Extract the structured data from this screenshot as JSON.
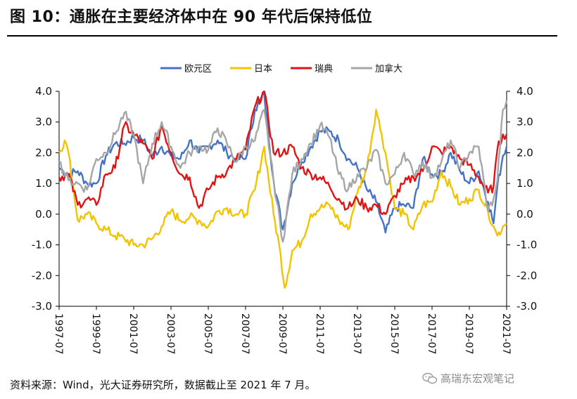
{
  "header": {
    "title": "图 10：通胀在主要经济体中在 90 年代后保持低位"
  },
  "footer": {
    "source": "资料来源：Wind，光大证券研究所，数据截止至 2021 年 7 月。"
  },
  "watermark": {
    "text": "高瑞东宏观笔记",
    "icon": "wechat-icon"
  },
  "chart_data": {
    "type": "line",
    "title": "",
    "xlabel": "",
    "ylabel": "",
    "x_range": [
      "1997-07",
      "2021-07"
    ],
    "x_ticks": [
      "1997-07",
      "1999-07",
      "2001-07",
      "2003-07",
      "2005-07",
      "2007-07",
      "2009-07",
      "2011-07",
      "2013-07",
      "2015-07",
      "2017-07",
      "2019-07",
      "2021-07"
    ],
    "ylim": [
      -3.0,
      4.0
    ],
    "y_ticks": [
      "4.0",
      "3.0",
      "2.0",
      "1.0",
      "0.0",
      "-1.0",
      "-2.0",
      "-3.0"
    ],
    "legend_position": "top-center",
    "series": [
      {
        "name": "欧元区",
        "color": "#4472C4",
        "points": [
          [
            1997.5,
            1.5
          ],
          [
            1998.0,
            1.3
          ],
          [
            1998.5,
            1.4
          ],
          [
            1999.0,
            1.0
          ],
          [
            1999.5,
            1.0
          ],
          [
            2000.0,
            1.9
          ],
          [
            2000.5,
            2.3
          ],
          [
            2001.0,
            2.3
          ],
          [
            2001.5,
            2.5
          ],
          [
            2002.0,
            2.4
          ],
          [
            2002.5,
            1.9
          ],
          [
            2003.0,
            2.2
          ],
          [
            2003.5,
            1.9
          ],
          [
            2004.0,
            1.8
          ],
          [
            2004.5,
            2.4
          ],
          [
            2005.0,
            2.0
          ],
          [
            2005.5,
            2.2
          ],
          [
            2006.0,
            2.4
          ],
          [
            2006.5,
            2.0
          ],
          [
            2007.0,
            1.8
          ],
          [
            2007.5,
            1.8
          ],
          [
            2008.0,
            3.4
          ],
          [
            2008.5,
            3.9
          ],
          [
            2009.0,
            1.1
          ],
          [
            2009.5,
            -0.5
          ],
          [
            2010.0,
            1.0
          ],
          [
            2010.5,
            1.7
          ],
          [
            2011.0,
            2.2
          ],
          [
            2011.5,
            2.7
          ],
          [
            2012.0,
            2.7
          ],
          [
            2012.5,
            2.4
          ],
          [
            2013.0,
            1.8
          ],
          [
            2013.5,
            1.5
          ],
          [
            2014.0,
            0.8
          ],
          [
            2014.5,
            0.4
          ],
          [
            2015.0,
            -0.6
          ],
          [
            2015.5,
            0.2
          ],
          [
            2016.0,
            0.3
          ],
          [
            2016.5,
            0.2
          ],
          [
            2017.0,
            1.8
          ],
          [
            2017.5,
            1.3
          ],
          [
            2018.0,
            1.3
          ],
          [
            2018.5,
            2.0
          ],
          [
            2019.0,
            1.4
          ],
          [
            2019.5,
            1.0
          ],
          [
            2020.0,
            1.4
          ],
          [
            2020.5,
            0.4
          ],
          [
            2020.8,
            -0.3
          ],
          [
            2021.0,
            0.9
          ],
          [
            2021.3,
            1.9
          ],
          [
            2021.5,
            2.2
          ]
        ]
      },
      {
        "name": "日本",
        "color": "#F2C300",
        "points": [
          [
            1997.5,
            2.0
          ],
          [
            1997.8,
            2.4
          ],
          [
            1998.0,
            2.0
          ],
          [
            1998.5,
            -0.2
          ],
          [
            1999.0,
            0.0
          ],
          [
            1999.5,
            -0.3
          ],
          [
            2000.0,
            -0.5
          ],
          [
            2000.5,
            -0.7
          ],
          [
            2001.0,
            -0.8
          ],
          [
            2001.5,
            -1.0
          ],
          [
            2002.0,
            -1.0
          ],
          [
            2002.5,
            -0.8
          ],
          [
            2003.0,
            -0.4
          ],
          [
            2003.5,
            0.1
          ],
          [
            2004.0,
            -0.2
          ],
          [
            2004.5,
            -0.1
          ],
          [
            2005.0,
            -0.2
          ],
          [
            2005.5,
            -0.4
          ],
          [
            2006.0,
            0.1
          ],
          [
            2006.5,
            0.2
          ],
          [
            2007.0,
            0.0
          ],
          [
            2007.5,
            0.0
          ],
          [
            2008.0,
            0.8
          ],
          [
            2008.5,
            2.2
          ],
          [
            2009.0,
            0.0
          ],
          [
            2009.3,
            -1.0
          ],
          [
            2009.6,
            -2.4
          ],
          [
            2010.0,
            -1.2
          ],
          [
            2010.5,
            -0.9
          ],
          [
            2011.0,
            0.0
          ],
          [
            2011.5,
            0.2
          ],
          [
            2012.0,
            0.3
          ],
          [
            2012.5,
            -0.2
          ],
          [
            2013.0,
            -0.5
          ],
          [
            2013.5,
            0.7
          ],
          [
            2014.0,
            1.5
          ],
          [
            2014.5,
            3.4
          ],
          [
            2014.8,
            2.6
          ],
          [
            2015.0,
            2.0
          ],
          [
            2015.5,
            0.2
          ],
          [
            2016.0,
            0.0
          ],
          [
            2016.5,
            -0.5
          ],
          [
            2017.0,
            0.3
          ],
          [
            2017.5,
            0.4
          ],
          [
            2018.0,
            1.4
          ],
          [
            2018.5,
            0.9
          ],
          [
            2019.0,
            0.3
          ],
          [
            2019.5,
            0.5
          ],
          [
            2020.0,
            0.8
          ],
          [
            2020.5,
            0.1
          ],
          [
            2020.8,
            -0.4
          ],
          [
            2021.0,
            -0.7
          ],
          [
            2021.3,
            -0.4
          ],
          [
            2021.5,
            -0.3
          ]
        ]
      },
      {
        "name": "瑞典",
        "color": "#E01414",
        "points": [
          [
            1997.5,
            1.2
          ],
          [
            1998.0,
            1.3
          ],
          [
            1998.5,
            0.3
          ],
          [
            1999.0,
            0.5
          ],
          [
            1999.5,
            0.3
          ],
          [
            2000.0,
            1.3
          ],
          [
            2000.5,
            1.5
          ],
          [
            2001.0,
            2.9
          ],
          [
            2001.5,
            2.6
          ],
          [
            2002.0,
            2.3
          ],
          [
            2002.5,
            1.8
          ],
          [
            2003.0,
            2.9
          ],
          [
            2003.5,
            2.0
          ],
          [
            2004.0,
            1.3
          ],
          [
            2004.5,
            1.2
          ],
          [
            2005.0,
            0.2
          ],
          [
            2005.5,
            0.8
          ],
          [
            2006.0,
            1.2
          ],
          [
            2006.5,
            1.4
          ],
          [
            2007.0,
            1.8
          ],
          [
            2007.5,
            2.1
          ],
          [
            2008.0,
            3.5
          ],
          [
            2008.5,
            4.0
          ],
          [
            2009.0,
            2.0
          ],
          [
            2009.5,
            2.0
          ],
          [
            2010.0,
            2.2
          ],
          [
            2010.5,
            1.5
          ],
          [
            2011.0,
            1.3
          ],
          [
            2011.5,
            1.2
          ],
          [
            2012.0,
            0.9
          ],
          [
            2012.5,
            0.5
          ],
          [
            2013.0,
            0.2
          ],
          [
            2013.5,
            0.5
          ],
          [
            2014.0,
            0.2
          ],
          [
            2014.5,
            0.3
          ],
          [
            2015.0,
            0.0
          ],
          [
            2015.5,
            0.6
          ],
          [
            2016.0,
            1.0
          ],
          [
            2016.5,
            1.2
          ],
          [
            2017.0,
            1.4
          ],
          [
            2017.5,
            2.2
          ],
          [
            2018.0,
            2.0
          ],
          [
            2018.5,
            2.2
          ],
          [
            2019.0,
            1.8
          ],
          [
            2019.5,
            1.6
          ],
          [
            2020.0,
            1.2
          ],
          [
            2020.5,
            0.7
          ],
          [
            2020.8,
            0.9
          ],
          [
            2021.0,
            2.1
          ],
          [
            2021.3,
            2.6
          ],
          [
            2021.5,
            2.6
          ]
        ]
      },
      {
        "name": "加拿大",
        "color": "#A6A6A6",
        "points": [
          [
            1997.5,
            1.7
          ],
          [
            1998.0,
            1.1
          ],
          [
            1998.5,
            1.0
          ],
          [
            1999.0,
            0.8
          ],
          [
            1999.5,
            1.8
          ],
          [
            2000.0,
            2.0
          ],
          [
            2000.5,
            2.6
          ],
          [
            2001.0,
            3.3
          ],
          [
            2001.5,
            2.6
          ],
          [
            2002.0,
            1.0
          ],
          [
            2002.5,
            2.3
          ],
          [
            2003.0,
            3.0
          ],
          [
            2003.5,
            2.2
          ],
          [
            2004.0,
            1.5
          ],
          [
            2004.5,
            2.0
          ],
          [
            2005.0,
            2.2
          ],
          [
            2005.5,
            2.1
          ],
          [
            2006.0,
            2.8
          ],
          [
            2006.5,
            2.3
          ],
          [
            2007.0,
            1.7
          ],
          [
            2007.5,
            2.2
          ],
          [
            2008.0,
            2.4
          ],
          [
            2008.5,
            3.4
          ],
          [
            2009.0,
            1.1
          ],
          [
            2009.5,
            -0.9
          ],
          [
            2010.0,
            1.3
          ],
          [
            2010.5,
            1.8
          ],
          [
            2011.0,
            2.3
          ],
          [
            2011.5,
            2.9
          ],
          [
            2012.0,
            2.5
          ],
          [
            2012.5,
            1.3
          ],
          [
            2013.0,
            0.8
          ],
          [
            2013.5,
            1.3
          ],
          [
            2014.0,
            1.5
          ],
          [
            2014.5,
            2.1
          ],
          [
            2015.0,
            1.0
          ],
          [
            2015.5,
            1.3
          ],
          [
            2016.0,
            2.0
          ],
          [
            2016.5,
            1.3
          ],
          [
            2017.0,
            1.7
          ],
          [
            2017.5,
            1.2
          ],
          [
            2018.0,
            1.7
          ],
          [
            2018.5,
            2.4
          ],
          [
            2019.0,
            1.5
          ],
          [
            2019.5,
            2.0
          ],
          [
            2020.0,
            2.2
          ],
          [
            2020.5,
            0.1
          ],
          [
            2020.8,
            0.5
          ],
          [
            2021.0,
            1.1
          ],
          [
            2021.3,
            3.4
          ],
          [
            2021.5,
            3.7
          ]
        ]
      }
    ]
  }
}
